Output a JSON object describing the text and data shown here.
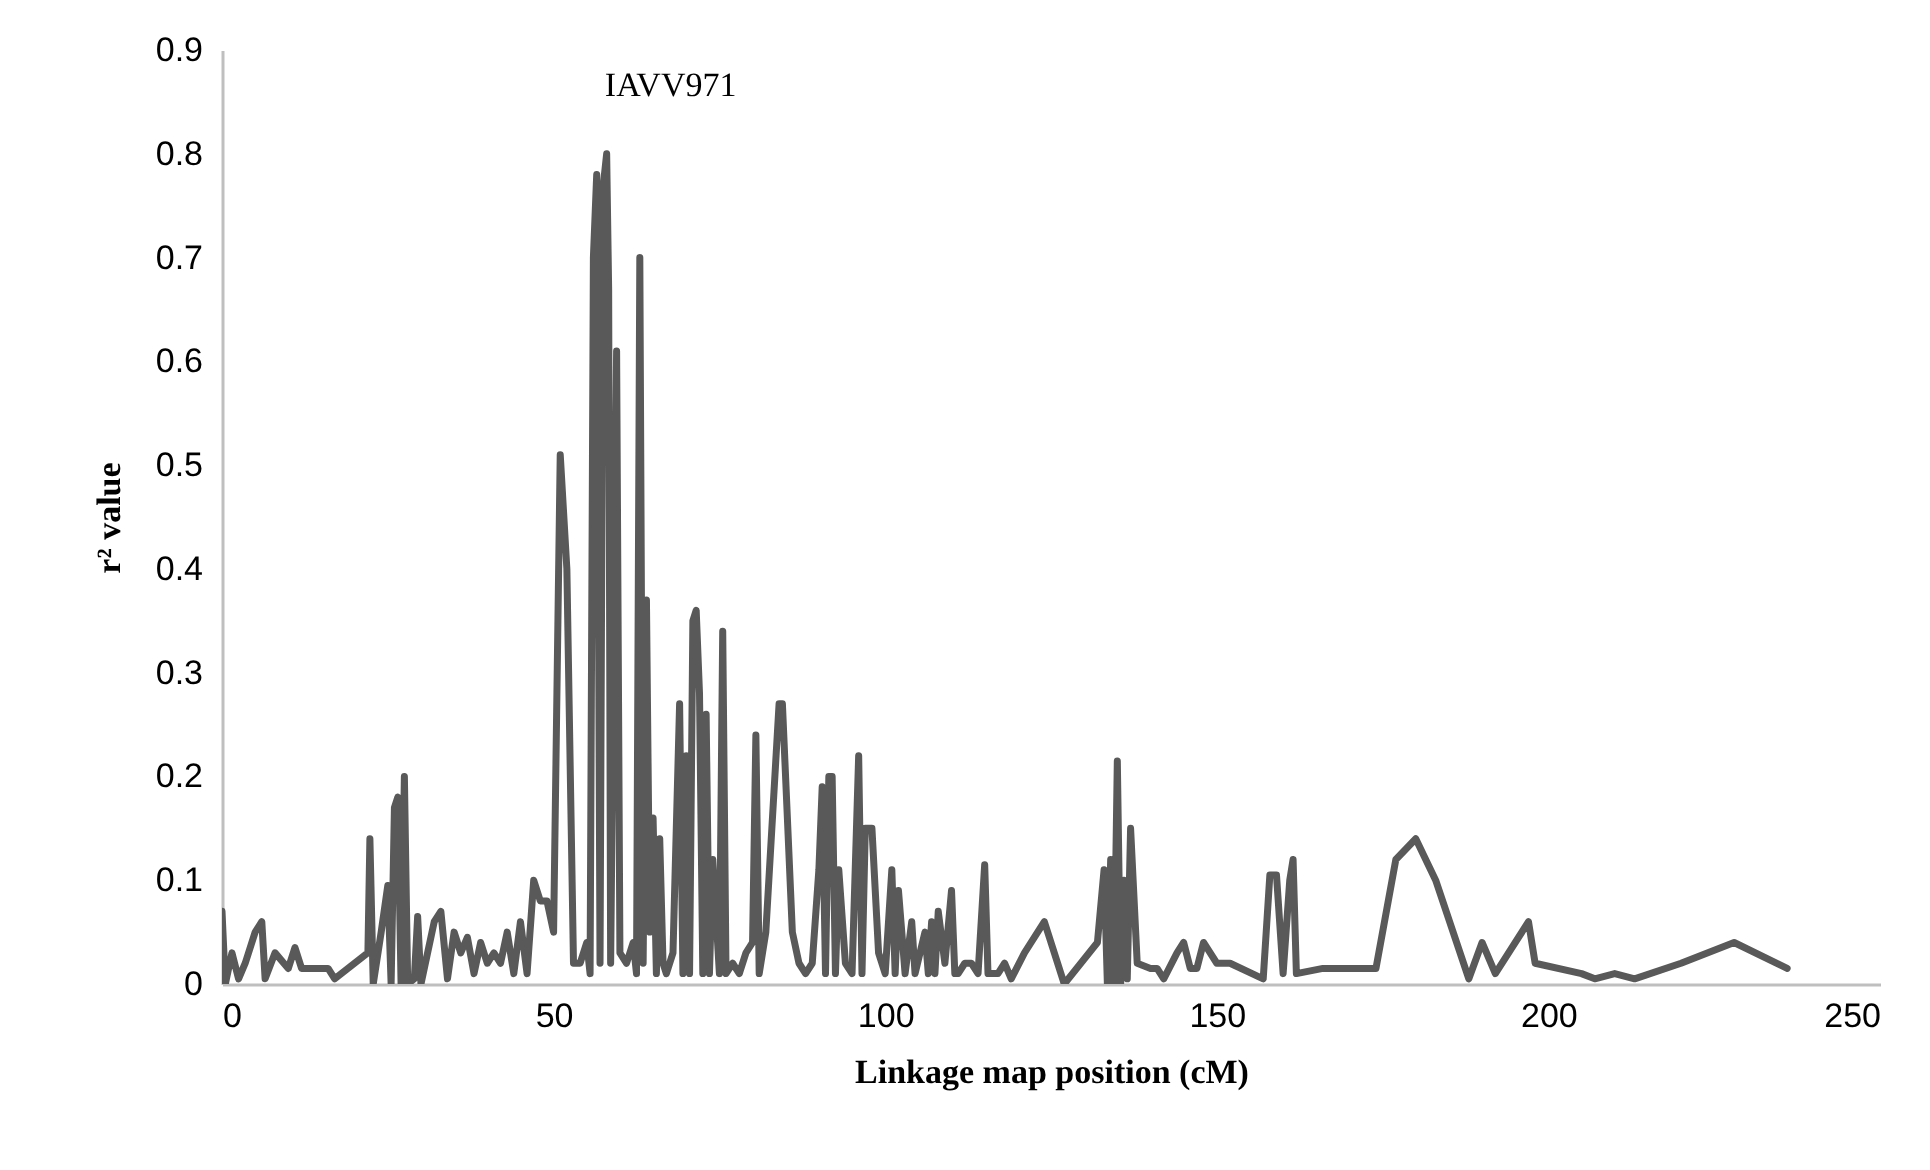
{
  "chart_data": {
    "type": "line",
    "xlabel": "Linkage map position (cM)",
    "ylabel": "r² value",
    "xlim": [
      0,
      250
    ],
    "xticks": [
      0,
      50,
      100,
      150,
      200,
      250
    ],
    "ylim": [
      0,
      0.9
    ],
    "yticks": [
      0,
      0.1,
      0.2,
      0.3,
      0.4,
      0.5,
      0.6,
      0.7,
      0.8,
      0.9
    ],
    "grid": false,
    "marker": "none",
    "line_style": "solid",
    "annotations": [
      {
        "text": "IAVV971",
        "x": 58,
        "y": 0.8
      }
    ],
    "series": [
      {
        "color": "#595959",
        "x": [
          0,
          0.5,
          1.5,
          2.5,
          3.5,
          5,
          6,
          6.5,
          8,
          10,
          11,
          12,
          16,
          17,
          22,
          22.3,
          22.8,
          24,
          25,
          25.5,
          26,
          26.5,
          27,
          27.5,
          28,
          29,
          29.5,
          30,
          32,
          33,
          34,
          35,
          36,
          37,
          38,
          39,
          40,
          41,
          42,
          43,
          44,
          45,
          46,
          47,
          48,
          49,
          50,
          51,
          52,
          53,
          54,
          55,
          55.5,
          56,
          56.5,
          57,
          57.5,
          58,
          58.3,
          58.6,
          59.5,
          60,
          61,
          62,
          62.5,
          63,
          63.5,
          64,
          64.5,
          65,
          65.5,
          66,
          66.5,
          67,
          68,
          69,
          69.5,
          70,
          70.5,
          71,
          71.5,
          72,
          72.5,
          73,
          73.5,
          74,
          75,
          75.5,
          76,
          77,
          78,
          79,
          80,
          80.5,
          81,
          82,
          84,
          84.5,
          86,
          87,
          88,
          89,
          90,
          90.5,
          91,
          91.5,
          92,
          92.5,
          93,
          94,
          95,
          96,
          96.5,
          97,
          98,
          99,
          100,
          101,
          101.5,
          102,
          103,
          104,
          104.5,
          106,
          106.5,
          107,
          107.5,
          108,
          109,
          110,
          110.5,
          111,
          112,
          113,
          114,
          115,
          115.5,
          117,
          118,
          119,
          121,
          124,
          127,
          132,
          133,
          133.5,
          134,
          134.5,
          135,
          135.5,
          136,
          136.5,
          137,
          138,
          140,
          141,
          142,
          144,
          145,
          146,
          147,
          148,
          150,
          152,
          157,
          158,
          159,
          160,
          161,
          161.5,
          162,
          166,
          174,
          177,
          180,
          183,
          188,
          190,
          192,
          197,
          198,
          205,
          207,
          210,
          213,
          220,
          228,
          236
        ],
        "values": [
          0.07,
          0,
          0.03,
          0.005,
          0.02,
          0.05,
          0.06,
          0.005,
          0.03,
          0.015,
          0.035,
          0.015,
          0.015,
          0.005,
          0.03,
          0.14,
          0,
          0.05,
          0.095,
          0,
          0.17,
          0.18,
          0,
          0.2,
          0,
          0.005,
          0.065,
          0,
          0.06,
          0.07,
          0.005,
          0.05,
          0.03,
          0.045,
          0.01,
          0.04,
          0.02,
          0.03,
          0.02,
          0.05,
          0.01,
          0.06,
          0.01,
          0.1,
          0.08,
          0.08,
          0.05,
          0.51,
          0.4,
          0.02,
          0.02,
          0.04,
          0.01,
          0.7,
          0.78,
          0.02,
          0.77,
          0.8,
          0.67,
          0.02,
          0.61,
          0.03,
          0.02,
          0.04,
          0.01,
          0.7,
          0.02,
          0.37,
          0.05,
          0.16,
          0.01,
          0.14,
          0.02,
          0.01,
          0.03,
          0.27,
          0.01,
          0.22,
          0.01,
          0.35,
          0.36,
          0.28,
          0.01,
          0.26,
          0.01,
          0.12,
          0.01,
          0.34,
          0.01,
          0.02,
          0.01,
          0.03,
          0.04,
          0.24,
          0.01,
          0.05,
          0.27,
          0.27,
          0.05,
          0.02,
          0.01,
          0.02,
          0.11,
          0.19,
          0.01,
          0.2,
          0.2,
          0.01,
          0.11,
          0.02,
          0.01,
          0.22,
          0.01,
          0.15,
          0.15,
          0.03,
          0.01,
          0.11,
          0.01,
          0.09,
          0.01,
          0.06,
          0.01,
          0.05,
          0.01,
          0.06,
          0.01,
          0.07,
          0.02,
          0.09,
          0.01,
          0.01,
          0.02,
          0.02,
          0.01,
          0.115,
          0.01,
          0.01,
          0.02,
          0.005,
          0.03,
          0.06,
          0,
          0.04,
          0.11,
          0,
          0.12,
          0,
          0.215,
          0,
          0.1,
          0.005,
          0.15,
          0.02,
          0.015,
          0.015,
          0.005,
          0.03,
          0.04,
          0.015,
          0.015,
          0.04,
          0.02,
          0.02,
          0.005,
          0.105,
          0.105,
          0.01,
          0.1,
          0.12,
          0.01,
          0.015,
          0.015,
          0.12,
          0.14,
          0.1,
          0.005,
          0.04,
          0.01,
          0.06,
          0.02,
          0.01,
          0.005,
          0.01,
          0.005,
          0.02,
          0.04,
          0.015
        ]
      }
    ]
  }
}
